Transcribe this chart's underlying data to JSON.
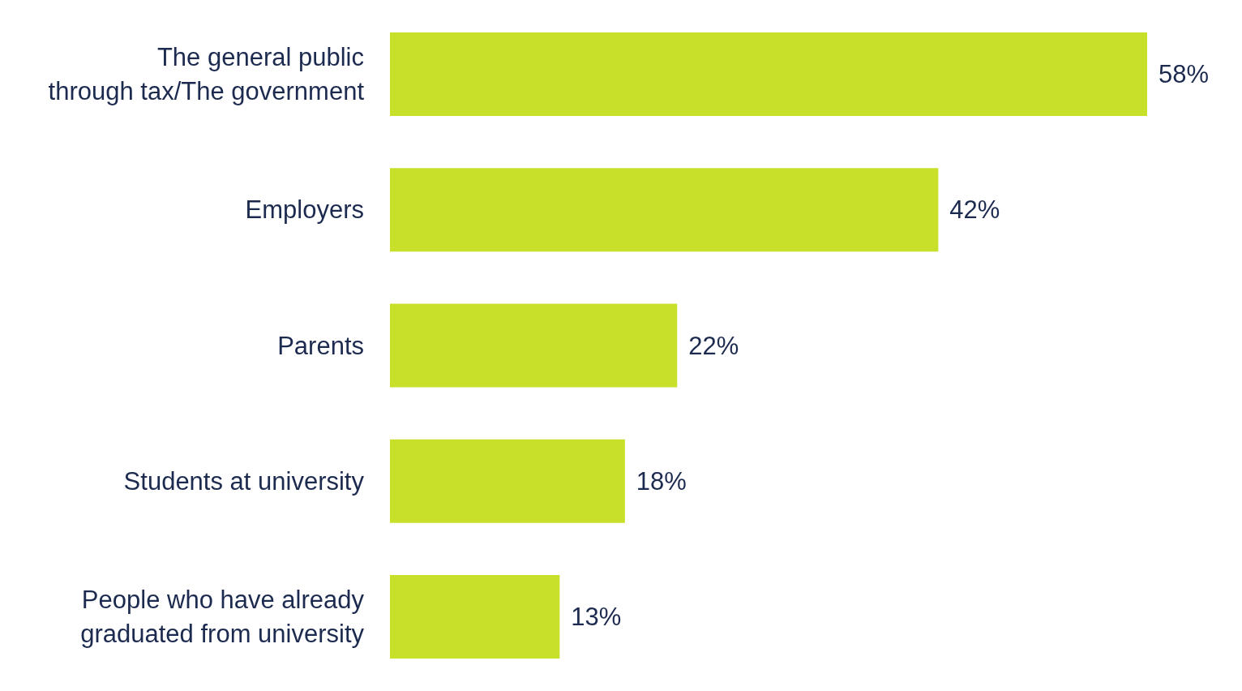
{
  "chart_data": {
    "type": "bar",
    "orientation": "horizontal",
    "categories": [
      "The general public\nthrough tax/The government",
      "Employers",
      "Parents",
      "Students at university",
      "People who have already\ngraduated from university"
    ],
    "values": [
      58,
      42,
      22,
      18,
      13
    ],
    "value_labels": [
      "58%",
      "42%",
      "22%",
      "18%",
      "13%"
    ],
    "color": "#c9e02a"
  }
}
